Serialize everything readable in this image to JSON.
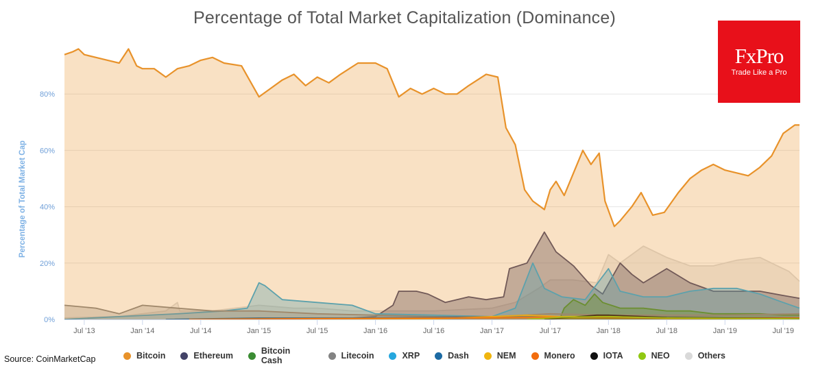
{
  "header": {
    "title": "Percentage of Total Market Capitalization (Dominance)"
  },
  "logo": {
    "name": "FxPro",
    "tagline": "Trade Like a Pro",
    "color": "#e8101a"
  },
  "footer": {
    "source": "Source: CoinMarketCap"
  },
  "chart_data": {
    "type": "area",
    "title": "Percentage of Total Market Capitalization (Dominance)",
    "xlabel": "",
    "ylabel": "Percentage of Total Market Cap",
    "ylim": [
      0,
      100
    ],
    "yticks": [
      0,
      20,
      40,
      60,
      80
    ],
    "ytick_labels": [
      "0%",
      "20%",
      "40%",
      "60%",
      "80%"
    ],
    "xlim": [
      2013.33,
      2019.64
    ],
    "xticks": [
      {
        "label": "Jul '13",
        "t": 2013.5
      },
      {
        "label": "Jan '14",
        "t": 2014.0
      },
      {
        "label": "Jul '14",
        "t": 2014.5
      },
      {
        "label": "Jan '15",
        "t": 2015.0
      },
      {
        "label": "Jul '15",
        "t": 2015.5
      },
      {
        "label": "Jan '16",
        "t": 2016.0
      },
      {
        "label": "Jul '16",
        "t": 2016.5
      },
      {
        "label": "Jan '17",
        "t": 2017.0
      },
      {
        "label": "Jul '17",
        "t": 2017.5
      },
      {
        "label": "Jan '18",
        "t": 2018.0
      },
      {
        "label": "Jul '18",
        "t": 2018.5
      },
      {
        "label": "Jan '19",
        "t": 2019.0
      },
      {
        "label": "Jul '19",
        "t": 2019.5
      }
    ],
    "legend_position": "bottom",
    "series": [
      {
        "name": "Others",
        "color": "#d9d9d9",
        "fill_opacity": 0.45,
        "points": [
          [
            2013.33,
            0.5
          ],
          [
            2013.8,
            1
          ],
          [
            2014.2,
            3
          ],
          [
            2014.3,
            6
          ],
          [
            2014.32,
            3
          ],
          [
            2014.6,
            3
          ],
          [
            2015.0,
            5
          ],
          [
            2015.3,
            4
          ],
          [
            2015.5,
            4
          ],
          [
            2015.8,
            3
          ],
          [
            2016.0,
            3
          ],
          [
            2016.5,
            3
          ],
          [
            2017.0,
            4
          ],
          [
            2017.2,
            6
          ],
          [
            2017.4,
            11
          ],
          [
            2017.5,
            14
          ],
          [
            2017.7,
            14
          ],
          [
            2017.9,
            13
          ],
          [
            2018.0,
            23
          ],
          [
            2018.1,
            20
          ],
          [
            2018.3,
            26
          ],
          [
            2018.5,
            22
          ],
          [
            2018.7,
            19
          ],
          [
            2018.9,
            19
          ],
          [
            2019.1,
            21
          ],
          [
            2019.3,
            22
          ],
          [
            2019.45,
            19
          ],
          [
            2019.55,
            17
          ],
          [
            2019.64,
            13.5
          ]
        ]
      },
      {
        "name": "Ethereum",
        "color": "#434368",
        "fill_opacity": 0.4,
        "points": [
          [
            2015.6,
            0
          ],
          [
            2016.0,
            1
          ],
          [
            2016.15,
            5
          ],
          [
            2016.2,
            10
          ],
          [
            2016.35,
            10
          ],
          [
            2016.45,
            9
          ],
          [
            2016.6,
            6
          ],
          [
            2016.8,
            8
          ],
          [
            2016.95,
            7
          ],
          [
            2017.1,
            8
          ],
          [
            2017.15,
            18
          ],
          [
            2017.3,
            20
          ],
          [
            2017.45,
            31
          ],
          [
            2017.55,
            24
          ],
          [
            2017.7,
            19
          ],
          [
            2017.85,
            12
          ],
          [
            2017.95,
            9
          ],
          [
            2018.1,
            20
          ],
          [
            2018.2,
            16
          ],
          [
            2018.3,
            13
          ],
          [
            2018.5,
            18
          ],
          [
            2018.7,
            13
          ],
          [
            2018.9,
            10
          ],
          [
            2019.1,
            10
          ],
          [
            2019.3,
            10
          ],
          [
            2019.5,
            8.5
          ],
          [
            2019.64,
            7.5
          ]
        ]
      },
      {
        "name": "XRP",
        "color": "#26a7de",
        "fill_opacity": 0.35,
        "points": [
          [
            2013.33,
            0
          ],
          [
            2013.8,
            1
          ],
          [
            2014.3,
            2
          ],
          [
            2014.7,
            3
          ],
          [
            2014.9,
            4
          ],
          [
            2015.0,
            13
          ],
          [
            2015.05,
            12
          ],
          [
            2015.2,
            7
          ],
          [
            2015.5,
            6
          ],
          [
            2015.8,
            5
          ],
          [
            2016.0,
            2
          ],
          [
            2016.5,
            1.5
          ],
          [
            2017.0,
            1
          ],
          [
            2017.2,
            4
          ],
          [
            2017.35,
            20
          ],
          [
            2017.45,
            11
          ],
          [
            2017.6,
            8
          ],
          [
            2017.8,
            7
          ],
          [
            2018.0,
            18
          ],
          [
            2018.1,
            10
          ],
          [
            2018.3,
            8
          ],
          [
            2018.5,
            8
          ],
          [
            2018.7,
            10
          ],
          [
            2018.9,
            11
          ],
          [
            2019.1,
            11
          ],
          [
            2019.3,
            9
          ],
          [
            2019.5,
            6
          ],
          [
            2019.64,
            4
          ]
        ]
      },
      {
        "name": "Bitcoin Cash",
        "color": "#3b8c33",
        "fill_opacity": 0.4,
        "points": [
          [
            2017.58,
            0
          ],
          [
            2017.62,
            4
          ],
          [
            2017.7,
            7
          ],
          [
            2017.8,
            5
          ],
          [
            2017.88,
            9
          ],
          [
            2017.95,
            6
          ],
          [
            2018.1,
            4
          ],
          [
            2018.3,
            4
          ],
          [
            2018.5,
            3
          ],
          [
            2018.7,
            3
          ],
          [
            2018.9,
            2
          ],
          [
            2019.1,
            2
          ],
          [
            2019.3,
            2
          ],
          [
            2019.5,
            1.5
          ],
          [
            2019.64,
            1.5
          ]
        ]
      },
      {
        "name": "Litecoin",
        "color": "#838383",
        "fill_opacity": 0.3,
        "points": [
          [
            2013.33,
            5
          ],
          [
            2013.6,
            4
          ],
          [
            2013.8,
            2
          ],
          [
            2014.0,
            5
          ],
          [
            2014.3,
            4
          ],
          [
            2014.6,
            3
          ],
          [
            2015.0,
            3
          ],
          [
            2015.5,
            2
          ],
          [
            2016.0,
            1.5
          ],
          [
            2016.5,
            1
          ],
          [
            2017.0,
            1
          ],
          [
            2017.5,
            2
          ],
          [
            2018.0,
            1.5
          ],
          [
            2018.5,
            1.5
          ],
          [
            2019.0,
            1.5
          ],
          [
            2019.64,
            2
          ]
        ]
      },
      {
        "name": "Dash",
        "color": "#1c6aa3",
        "fill_opacity": 0.3,
        "points": [
          [
            2014.2,
            0
          ],
          [
            2015.0,
            0.5
          ],
          [
            2016.0,
            0.5
          ],
          [
            2017.0,
            1
          ],
          [
            2017.5,
            1
          ],
          [
            2018.0,
            1
          ],
          [
            2018.5,
            0.5
          ],
          [
            2019.64,
            0.5
          ]
        ]
      },
      {
        "name": "NEM",
        "color": "#f0b50f",
        "fill_opacity": 0.3,
        "points": [
          [
            2015.3,
            0
          ],
          [
            2016.5,
            0.2
          ],
          [
            2017.3,
            1.5
          ],
          [
            2017.6,
            1
          ],
          [
            2018.0,
            1.2
          ],
          [
            2018.5,
            0.3
          ],
          [
            2019.64,
            0.1
          ]
        ]
      },
      {
        "name": "Monero",
        "color": "#f26c0d",
        "fill_opacity": 0.3,
        "points": [
          [
            2014.4,
            0
          ],
          [
            2015.5,
            0.3
          ],
          [
            2016.7,
            0.5
          ],
          [
            2017.5,
            0.8
          ],
          [
            2018.0,
            0.6
          ],
          [
            2018.5,
            0.5
          ],
          [
            2019.64,
            0.5
          ]
        ]
      },
      {
        "name": "IOTA",
        "color": "#111111",
        "fill_opacity": 0.3,
        "points": [
          [
            2017.45,
            0
          ],
          [
            2017.9,
            1.5
          ],
          [
            2018.0,
            1.5
          ],
          [
            2018.5,
            0.7
          ],
          [
            2019.64,
            0.3
          ]
        ]
      },
      {
        "name": "NEO",
        "color": "#90c812",
        "fill_opacity": 0.3,
        "points": [
          [
            2017.3,
            0
          ],
          [
            2017.6,
            0.8
          ],
          [
            2018.0,
            1.0
          ],
          [
            2018.5,
            0.5
          ],
          [
            2019.64,
            0.2
          ]
        ]
      },
      {
        "name": "Bitcoin",
        "color": "#e8922a",
        "fill_opacity": 0.28,
        "points": [
          [
            2013.33,
            94
          ],
          [
            2013.4,
            95
          ],
          [
            2013.45,
            96
          ],
          [
            2013.5,
            94
          ],
          [
            2013.6,
            93
          ],
          [
            2013.7,
            92
          ],
          [
            2013.8,
            91
          ],
          [
            2013.88,
            96
          ],
          [
            2013.95,
            90
          ],
          [
            2014.0,
            89
          ],
          [
            2014.1,
            89
          ],
          [
            2014.2,
            86
          ],
          [
            2014.3,
            89
          ],
          [
            2014.4,
            90
          ],
          [
            2014.5,
            92
          ],
          [
            2014.6,
            93
          ],
          [
            2014.7,
            91
          ],
          [
            2014.85,
            90
          ],
          [
            2015.0,
            79
          ],
          [
            2015.1,
            82
          ],
          [
            2015.2,
            85
          ],
          [
            2015.3,
            87
          ],
          [
            2015.4,
            83
          ],
          [
            2015.5,
            86
          ],
          [
            2015.6,
            84
          ],
          [
            2015.7,
            87
          ],
          [
            2015.85,
            91
          ],
          [
            2016.0,
            91
          ],
          [
            2016.1,
            89
          ],
          [
            2016.2,
            79
          ],
          [
            2016.3,
            82
          ],
          [
            2016.4,
            80
          ],
          [
            2016.5,
            82
          ],
          [
            2016.6,
            80
          ],
          [
            2016.7,
            80
          ],
          [
            2016.8,
            83
          ],
          [
            2016.95,
            87
          ],
          [
            2017.05,
            86
          ],
          [
            2017.12,
            68
          ],
          [
            2017.2,
            62
          ],
          [
            2017.28,
            46
          ],
          [
            2017.35,
            42
          ],
          [
            2017.45,
            39
          ],
          [
            2017.5,
            46
          ],
          [
            2017.55,
            49
          ],
          [
            2017.62,
            44
          ],
          [
            2017.7,
            52
          ],
          [
            2017.78,
            60
          ],
          [
            2017.85,
            55
          ],
          [
            2017.92,
            59
          ],
          [
            2017.97,
            42
          ],
          [
            2018.05,
            33
          ],
          [
            2018.1,
            35
          ],
          [
            2018.2,
            40
          ],
          [
            2018.28,
            45
          ],
          [
            2018.38,
            37
          ],
          [
            2018.48,
            38
          ],
          [
            2018.6,
            45
          ],
          [
            2018.7,
            50
          ],
          [
            2018.8,
            53
          ],
          [
            2018.9,
            55
          ],
          [
            2019.0,
            53
          ],
          [
            2019.1,
            52
          ],
          [
            2019.2,
            51
          ],
          [
            2019.3,
            54
          ],
          [
            2019.4,
            58
          ],
          [
            2019.5,
            66
          ],
          [
            2019.6,
            69
          ],
          [
            2019.64,
            69
          ]
        ]
      }
    ]
  },
  "legend": {
    "items": [
      {
        "label": "Bitcoin",
        "color": "#e8922a"
      },
      {
        "label": "Ethereum",
        "color": "#434368"
      },
      {
        "label": "Bitcoin Cash",
        "color": "#3b8c33"
      },
      {
        "label": "Litecoin",
        "color": "#838383"
      },
      {
        "label": "XRP",
        "color": "#26a7de"
      },
      {
        "label": "Dash",
        "color": "#1c6aa3"
      },
      {
        "label": "NEM",
        "color": "#f0b50f"
      },
      {
        "label": "Monero",
        "color": "#f26c0d"
      },
      {
        "label": "IOTA",
        "color": "#111111"
      },
      {
        "label": "NEO",
        "color": "#90c812"
      },
      {
        "label": "Others",
        "color": "#d9d9d9"
      }
    ]
  }
}
